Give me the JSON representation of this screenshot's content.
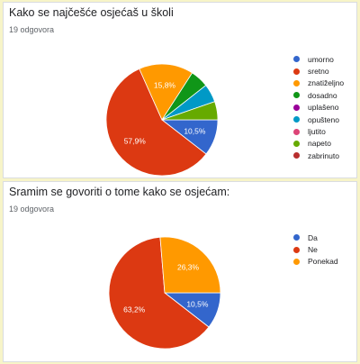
{
  "charts": [
    {
      "question": "Kako se najčešće osjećaš u školi",
      "responses": "19 odgovora"
    },
    {
      "question": "Sramim se govoriti o tome kako se osjećam:",
      "responses": "19 odgovora"
    }
  ],
  "chart_data": [
    {
      "type": "pie",
      "title": "Kako se najčešće osjećaš u školi",
      "categories": [
        "umorno",
        "sretno",
        "znatiželjno",
        "dosadno",
        "uplašeno",
        "opušteno",
        "ljutito",
        "napeto",
        "zabrinuto"
      ],
      "values": [
        10.5,
        57.9,
        15.8,
        5.3,
        0,
        5.3,
        0,
        5.3,
        0
      ],
      "colors": [
        "#3366cc",
        "#dc3912",
        "#ff9900",
        "#109618",
        "#990099",
        "#0099c6",
        "#dd4477",
        "#66aa00",
        "#b82e2e"
      ],
      "data_labels": [
        "10,5%",
        "57,9%",
        "15,8%",
        "",
        "",
        "",
        "",
        "",
        ""
      ],
      "legend_position": "right"
    },
    {
      "type": "pie",
      "title": "Sramim se govoriti o tome kako se osjećam:",
      "categories": [
        "Da",
        "Ne",
        "Ponekad"
      ],
      "values": [
        10.5,
        63.2,
        26.3
      ],
      "colors": [
        "#3366cc",
        "#dc3912",
        "#ff9900"
      ],
      "data_labels": [
        "10,5%",
        "63,2%",
        "26,3%"
      ],
      "legend_position": "right"
    }
  ]
}
